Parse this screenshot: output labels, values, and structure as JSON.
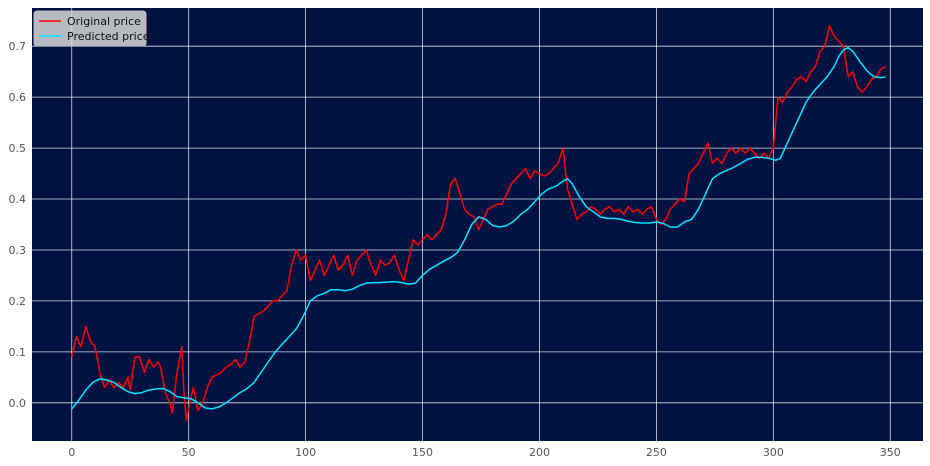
{
  "chart_data": {
    "type": "line",
    "title": "",
    "xlabel": "",
    "ylabel": "",
    "xlim": [
      -17,
      364
    ],
    "ylim": [
      -0.075,
      0.775
    ],
    "xticks": [
      0,
      50,
      100,
      150,
      200,
      250,
      300,
      350
    ],
    "yticks": [
      0.0,
      0.1,
      0.2,
      0.3,
      0.4,
      0.5,
      0.6,
      0.7
    ],
    "xtick_labels": [
      "0",
      "50",
      "100",
      "150",
      "200",
      "250",
      "300",
      "350"
    ],
    "ytick_labels": [
      "0.0",
      "0.1",
      "0.2",
      "0.3",
      "0.4",
      "0.5",
      "0.6",
      "0.7"
    ],
    "grid": true,
    "legend_position": "top-left",
    "background_color": "#001242",
    "series": [
      {
        "name": "Original price",
        "color": "#ff0000",
        "points": [
          [
            0,
            0.09
          ],
          [
            2,
            0.13
          ],
          [
            4,
            0.11
          ],
          [
            6,
            0.15
          ],
          [
            8,
            0.12
          ],
          [
            10,
            0.11
          ],
          [
            12,
            0.06
          ],
          [
            14,
            0.03
          ],
          [
            16,
            0.045
          ],
          [
            18,
            0.03
          ],
          [
            20,
            0.04
          ],
          [
            22,
            0.03
          ],
          [
            24,
            0.05
          ],
          [
            25,
            0.025
          ],
          [
            27,
            0.09
          ],
          [
            29,
            0.09
          ],
          [
            31,
            0.06
          ],
          [
            33,
            0.085
          ],
          [
            35,
            0.07
          ],
          [
            37,
            0.08
          ],
          [
            38,
            0.07
          ],
          [
            40,
            0.02
          ],
          [
            42,
            0.0
          ],
          [
            43,
            -0.02
          ],
          [
            45,
            0.06
          ],
          [
            47,
            0.11
          ],
          [
            48,
            0.02
          ],
          [
            49,
            -0.035
          ],
          [
            51,
            0.01
          ],
          [
            52,
            0.03
          ],
          [
            54,
            -0.015
          ],
          [
            56,
            0.0
          ],
          [
            58,
            0.03
          ],
          [
            60,
            0.05
          ],
          [
            62,
            0.055
          ],
          [
            64,
            0.06
          ],
          [
            66,
            0.07
          ],
          [
            68,
            0.075
          ],
          [
            70,
            0.085
          ],
          [
            72,
            0.07
          ],
          [
            74,
            0.08
          ],
          [
            76,
            0.12
          ],
          [
            78,
            0.17
          ],
          [
            80,
            0.175
          ],
          [
            82,
            0.18
          ],
          [
            84,
            0.19
          ],
          [
            86,
            0.2
          ],
          [
            88,
            0.2
          ],
          [
            90,
            0.21
          ],
          [
            92,
            0.22
          ],
          [
            94,
            0.27
          ],
          [
            96,
            0.3
          ],
          [
            98,
            0.28
          ],
          [
            100,
            0.29
          ],
          [
            102,
            0.24
          ],
          [
            104,
            0.26
          ],
          [
            106,
            0.28
          ],
          [
            108,
            0.25
          ],
          [
            110,
            0.27
          ],
          [
            112,
            0.29
          ],
          [
            114,
            0.26
          ],
          [
            116,
            0.27
          ],
          [
            118,
            0.29
          ],
          [
            120,
            0.25
          ],
          [
            122,
            0.28
          ],
          [
            124,
            0.29
          ],
          [
            126,
            0.3
          ],
          [
            128,
            0.27
          ],
          [
            130,
            0.25
          ],
          [
            132,
            0.28
          ],
          [
            134,
            0.27
          ],
          [
            136,
            0.275
          ],
          [
            138,
            0.29
          ],
          [
            140,
            0.26
          ],
          [
            142,
            0.24
          ],
          [
            144,
            0.28
          ],
          [
            146,
            0.32
          ],
          [
            148,
            0.31
          ],
          [
            150,
            0.32
          ],
          [
            152,
            0.33
          ],
          [
            154,
            0.32
          ],
          [
            156,
            0.33
          ],
          [
            158,
            0.34
          ],
          [
            160,
            0.37
          ],
          [
            162,
            0.43
          ],
          [
            164,
            0.44
          ],
          [
            166,
            0.41
          ],
          [
            168,
            0.38
          ],
          [
            170,
            0.37
          ],
          [
            172,
            0.365
          ],
          [
            174,
            0.34
          ],
          [
            176,
            0.36
          ],
          [
            178,
            0.38
          ],
          [
            180,
            0.385
          ],
          [
            182,
            0.39
          ],
          [
            184,
            0.39
          ],
          [
            186,
            0.41
          ],
          [
            188,
            0.43
          ],
          [
            190,
            0.44
          ],
          [
            192,
            0.45
          ],
          [
            194,
            0.46
          ],
          [
            196,
            0.44
          ],
          [
            198,
            0.455
          ],
          [
            200,
            0.45
          ],
          [
            202,
            0.445
          ],
          [
            204,
            0.45
          ],
          [
            206,
            0.46
          ],
          [
            208,
            0.47
          ],
          [
            210,
            0.5
          ],
          [
            212,
            0.42
          ],
          [
            214,
            0.39
          ],
          [
            216,
            0.36
          ],
          [
            218,
            0.37
          ],
          [
            220,
            0.375
          ],
          [
            222,
            0.385
          ],
          [
            224,
            0.38
          ],
          [
            226,
            0.37
          ],
          [
            228,
            0.38
          ],
          [
            230,
            0.385
          ],
          [
            232,
            0.375
          ],
          [
            234,
            0.38
          ],
          [
            236,
            0.37
          ],
          [
            238,
            0.385
          ],
          [
            240,
            0.375
          ],
          [
            242,
            0.38
          ],
          [
            244,
            0.37
          ],
          [
            246,
            0.38
          ],
          [
            248,
            0.385
          ],
          [
            250,
            0.36
          ],
          [
            252,
            0.35
          ],
          [
            254,
            0.36
          ],
          [
            256,
            0.38
          ],
          [
            258,
            0.39
          ],
          [
            260,
            0.4
          ],
          [
            262,
            0.395
          ],
          [
            264,
            0.45
          ],
          [
            266,
            0.46
          ],
          [
            268,
            0.47
          ],
          [
            270,
            0.49
          ],
          [
            272,
            0.51
          ],
          [
            274,
            0.47
          ],
          [
            276,
            0.48
          ],
          [
            278,
            0.47
          ],
          [
            280,
            0.49
          ],
          [
            282,
            0.5
          ],
          [
            284,
            0.49
          ],
          [
            286,
            0.5
          ],
          [
            288,
            0.49
          ],
          [
            290,
            0.5
          ],
          [
            292,
            0.49
          ],
          [
            294,
            0.48
          ],
          [
            296,
            0.49
          ],
          [
            298,
            0.48
          ],
          [
            300,
            0.5
          ],
          [
            302,
            0.6
          ],
          [
            304,
            0.59
          ],
          [
            306,
            0.61
          ],
          [
            308,
            0.62
          ],
          [
            310,
            0.635
          ],
          [
            312,
            0.64
          ],
          [
            314,
            0.63
          ],
          [
            316,
            0.65
          ],
          [
            318,
            0.66
          ],
          [
            320,
            0.69
          ],
          [
            322,
            0.7
          ],
          [
            324,
            0.74
          ],
          [
            326,
            0.72
          ],
          [
            328,
            0.71
          ],
          [
            330,
            0.7
          ],
          [
            332,
            0.64
          ],
          [
            334,
            0.65
          ],
          [
            336,
            0.62
          ],
          [
            338,
            0.61
          ],
          [
            340,
            0.62
          ],
          [
            342,
            0.635
          ],
          [
            344,
            0.64
          ],
          [
            346,
            0.655
          ],
          [
            348,
            0.66
          ]
        ]
      },
      {
        "name": "Predicted price",
        "color": "#00e5ff",
        "points": [
          [
            0,
            -0.012
          ],
          [
            3,
            0.005
          ],
          [
            6,
            0.025
          ],
          [
            9,
            0.04
          ],
          [
            12,
            0.047
          ],
          [
            15,
            0.045
          ],
          [
            18,
            0.04
          ],
          [
            21,
            0.03
          ],
          [
            24,
            0.022
          ],
          [
            27,
            0.018
          ],
          [
            30,
            0.02
          ],
          [
            33,
            0.025
          ],
          [
            36,
            0.027
          ],
          [
            39,
            0.028
          ],
          [
            42,
            0.022
          ],
          [
            45,
            0.012
          ],
          [
            48,
            0.01
          ],
          [
            51,
            0.008
          ],
          [
            54,
            0.0
          ],
          [
            57,
            -0.01
          ],
          [
            60,
            -0.012
          ],
          [
            63,
            -0.008
          ],
          [
            66,
            0.0
          ],
          [
            69,
            0.01
          ],
          [
            72,
            0.02
          ],
          [
            75,
            0.028
          ],
          [
            78,
            0.04
          ],
          [
            81,
            0.06
          ],
          [
            84,
            0.08
          ],
          [
            87,
            0.1
          ],
          [
            90,
            0.115
          ],
          [
            93,
            0.13
          ],
          [
            96,
            0.145
          ],
          [
            99,
            0.17
          ],
          [
            102,
            0.2
          ],
          [
            105,
            0.21
          ],
          [
            108,
            0.215
          ],
          [
            111,
            0.222
          ],
          [
            114,
            0.222
          ],
          [
            117,
            0.22
          ],
          [
            120,
            0.223
          ],
          [
            123,
            0.23
          ],
          [
            126,
            0.235
          ],
          [
            129,
            0.236
          ],
          [
            132,
            0.236
          ],
          [
            135,
            0.237
          ],
          [
            138,
            0.238
          ],
          [
            141,
            0.236
          ],
          [
            144,
            0.233
          ],
          [
            147,
            0.235
          ],
          [
            150,
            0.25
          ],
          [
            153,
            0.262
          ],
          [
            156,
            0.27
          ],
          [
            159,
            0.278
          ],
          [
            162,
            0.285
          ],
          [
            165,
            0.295
          ],
          [
            168,
            0.32
          ],
          [
            171,
            0.35
          ],
          [
            174,
            0.365
          ],
          [
            177,
            0.36
          ],
          [
            180,
            0.348
          ],
          [
            183,
            0.345
          ],
          [
            186,
            0.348
          ],
          [
            189,
            0.356
          ],
          [
            192,
            0.37
          ],
          [
            195,
            0.38
          ],
          [
            198,
            0.395
          ],
          [
            201,
            0.41
          ],
          [
            204,
            0.42
          ],
          [
            207,
            0.425
          ],
          [
            210,
            0.435
          ],
          [
            212,
            0.44
          ],
          [
            214,
            0.43
          ],
          [
            217,
            0.405
          ],
          [
            220,
            0.385
          ],
          [
            223,
            0.375
          ],
          [
            226,
            0.365
          ],
          [
            229,
            0.362
          ],
          [
            232,
            0.362
          ],
          [
            235,
            0.36
          ],
          [
            238,
            0.356
          ],
          [
            241,
            0.354
          ],
          [
            244,
            0.353
          ],
          [
            247,
            0.353
          ],
          [
            250,
            0.355
          ],
          [
            253,
            0.352
          ],
          [
            256,
            0.345
          ],
          [
            259,
            0.345
          ],
          [
            262,
            0.355
          ],
          [
            265,
            0.36
          ],
          [
            268,
            0.38
          ],
          [
            271,
            0.41
          ],
          [
            274,
            0.44
          ],
          [
            277,
            0.45
          ],
          [
            280,
            0.456
          ],
          [
            283,
            0.462
          ],
          [
            286,
            0.47
          ],
          [
            289,
            0.478
          ],
          [
            292,
            0.482
          ],
          [
            295,
            0.482
          ],
          [
            298,
            0.48
          ],
          [
            301,
            0.476
          ],
          [
            303,
            0.48
          ],
          [
            305,
            0.5
          ],
          [
            308,
            0.53
          ],
          [
            311,
            0.56
          ],
          [
            314,
            0.59
          ],
          [
            317,
            0.61
          ],
          [
            320,
            0.625
          ],
          [
            323,
            0.64
          ],
          [
            326,
            0.66
          ],
          [
            328,
            0.68
          ],
          [
            330,
            0.693
          ],
          [
            332,
            0.697
          ],
          [
            334,
            0.69
          ],
          [
            337,
            0.67
          ],
          [
            340,
            0.652
          ],
          [
            343,
            0.64
          ],
          [
            346,
            0.638
          ],
          [
            348,
            0.64
          ]
        ]
      }
    ]
  }
}
